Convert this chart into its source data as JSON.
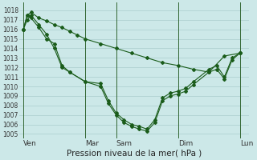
{
  "background_color": "#cce8e8",
  "grid_color": "#aacccc",
  "vline_color": "#336633",
  "line_color": "#1a5c1a",
  "xlabel": "Pression niveau de la mer( hPa )",
  "xlabel_fontsize": 7.5,
  "ylim": [
    1004.5,
    1018.8
  ],
  "yticks": [
    1005,
    1006,
    1007,
    1008,
    1009,
    1010,
    1011,
    1012,
    1013,
    1014,
    1015,
    1016,
    1017,
    1018
  ],
  "ytick_fontsize": 5.5,
  "xtick_labels": [
    "Ven",
    "Mar",
    "Sam",
    "Dim",
    "Lun"
  ],
  "xtick_fontsize": 6.5,
  "xlim": [
    -3,
    175
  ],
  "xtick_positions": [
    0,
    48,
    72,
    120,
    168
  ],
  "series1_x": [
    0,
    3,
    6,
    12,
    18,
    24,
    30,
    36,
    42,
    48,
    60,
    72,
    84,
    96,
    108,
    120,
    132,
    144,
    156,
    168
  ],
  "series1_y": [
    1016.0,
    1017.5,
    1017.8,
    1017.2,
    1016.9,
    1016.5,
    1016.2,
    1015.8,
    1015.4,
    1015.0,
    1014.5,
    1014.0,
    1013.5,
    1013.0,
    1012.5,
    1012.2,
    1011.8,
    1011.5,
    1013.2,
    1013.5
  ],
  "series2_x": [
    0,
    3,
    6,
    12,
    18,
    24,
    30,
    36,
    48,
    60,
    66,
    72,
    78,
    84,
    90,
    96,
    102,
    108,
    114,
    120,
    126,
    132,
    144,
    150,
    156,
    162,
    168
  ],
  "series2_y": [
    1016.0,
    1017.5,
    1017.2,
    1016.2,
    1015.0,
    1014.5,
    1012.2,
    1011.5,
    1010.5,
    1010.3,
    1008.5,
    1007.2,
    1006.5,
    1006.0,
    1005.8,
    1005.5,
    1006.5,
    1008.8,
    1009.3,
    1009.5,
    1009.8,
    1010.5,
    1011.8,
    1012.2,
    1011.0,
    1013.0,
    1013.5
  ],
  "series3_x": [
    0,
    3,
    6,
    12,
    18,
    24,
    30,
    36,
    48,
    60,
    66,
    72,
    78,
    84,
    90,
    96,
    102,
    108,
    114,
    120,
    126,
    132,
    144,
    150,
    156,
    162,
    168
  ],
  "series3_y": [
    1016.0,
    1017.0,
    1017.5,
    1016.5,
    1015.5,
    1014.0,
    1012.0,
    1011.5,
    1010.5,
    1010.0,
    1008.2,
    1007.0,
    1006.2,
    1005.8,
    1005.5,
    1005.3,
    1006.2,
    1008.5,
    1009.0,
    1009.2,
    1009.5,
    1010.2,
    1011.5,
    1011.8,
    1010.8,
    1012.8,
    1013.5
  ],
  "lw": 0.8,
  "ms": 2.0
}
